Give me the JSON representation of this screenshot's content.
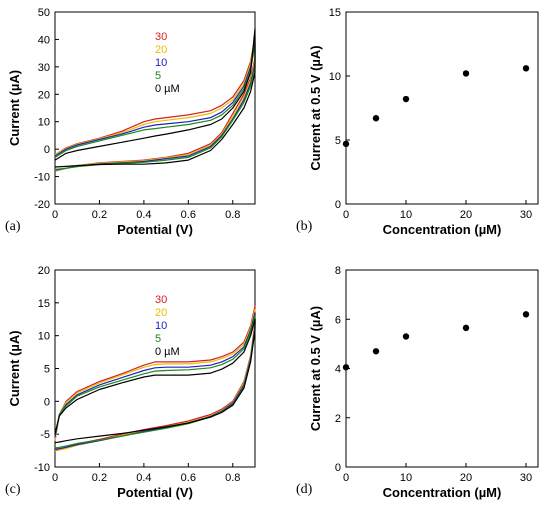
{
  "chart_data": [
    {
      "panel": "(a)",
      "type": "line",
      "xlabel": "Potential (V)",
      "ylabel": "Current (µA)",
      "xlim": [
        0,
        0.9
      ],
      "ylim": [
        -20,
        50
      ],
      "xticks": [
        0,
        0.2,
        0.4,
        0.6,
        0.8
      ],
      "yticks": [
        -20,
        -10,
        0,
        10,
        20,
        30,
        40,
        50
      ],
      "legend_placement": "top-center",
      "series": [
        {
          "name": "30",
          "color": "#d62020",
          "anodic": {
            "x": [
              0,
              0.05,
              0.1,
              0.2,
              0.3,
              0.4,
              0.45,
              0.5,
              0.6,
              0.7,
              0.75,
              0.8,
              0.85,
              0.88,
              0.9
            ],
            "y": [
              -2,
              0.5,
              2,
              4,
              6.5,
              10,
              11,
              11.5,
              12.5,
              14,
              16,
              19,
              25,
              32,
              41
            ]
          },
          "cathodic": {
            "x": [
              0.9,
              0.88,
              0.85,
              0.8,
              0.75,
              0.7,
              0.6,
              0.5,
              0.4,
              0.3,
              0.2,
              0.1,
              0.05,
              0
            ],
            "y": [
              33,
              26,
              20,
              13,
              6,
              2,
              -1.5,
              -3,
              -4,
              -4.5,
              -5,
              -6,
              -7,
              -8
            ]
          }
        },
        {
          "name": "20",
          "color": "#e6c000",
          "anodic": {
            "x": [
              0,
              0.05,
              0.1,
              0.2,
              0.3,
              0.4,
              0.45,
              0.5,
              0.6,
              0.7,
              0.75,
              0.8,
              0.85,
              0.88,
              0.9
            ],
            "y": [
              -2,
              0.3,
              1.8,
              3.8,
              6,
              9,
              10,
              10.5,
              11.5,
              13,
              15,
              18,
              24,
              31,
              40
            ]
          },
          "cathodic": {
            "x": [
              0.9,
              0.88,
              0.85,
              0.8,
              0.75,
              0.7,
              0.6,
              0.5,
              0.4,
              0.3,
              0.2,
              0.1,
              0.05,
              0
            ],
            "y": [
              32,
              25,
              19,
              12,
              5.5,
              1.5,
              -2,
              -3.2,
              -4.2,
              -4.7,
              -5.2,
              -6,
              -7,
              -7.8
            ]
          }
        },
        {
          "name": "10",
          "color": "#2020c0",
          "anodic": {
            "x": [
              0,
              0.05,
              0.1,
              0.2,
              0.3,
              0.4,
              0.45,
              0.5,
              0.6,
              0.7,
              0.75,
              0.8,
              0.85,
              0.88,
              0.9
            ],
            "y": [
              -2.5,
              0,
              1.5,
              3.5,
              5.5,
              8,
              8.8,
              9.2,
              10,
              11.5,
              13.5,
              17,
              23,
              30,
              39
            ]
          },
          "cathodic": {
            "x": [
              0.9,
              0.88,
              0.85,
              0.8,
              0.75,
              0.7,
              0.6,
              0.5,
              0.4,
              0.3,
              0.2,
              0.1,
              0.05,
              0
            ],
            "y": [
              31,
              24,
              18,
              11,
              5,
              1,
              -2.5,
              -3.5,
              -4.5,
              -5,
              -5.4,
              -6.2,
              -7,
              -7.6
            ]
          }
        },
        {
          "name": "5",
          "color": "#1a8a1a",
          "anodic": {
            "x": [
              0,
              0.05,
              0.1,
              0.2,
              0.3,
              0.4,
              0.45,
              0.5,
              0.6,
              0.7,
              0.75,
              0.8,
              0.85,
              0.88,
              0.9
            ],
            "y": [
              -3,
              -0.5,
              1,
              3,
              5,
              7,
              7.5,
              8,
              9,
              10.5,
              12.5,
              16,
              22,
              29,
              38
            ]
          },
          "cathodic": {
            "x": [
              0.9,
              0.88,
              0.85,
              0.8,
              0.75,
              0.7,
              0.6,
              0.5,
              0.4,
              0.3,
              0.2,
              0.1,
              0.05,
              0
            ],
            "y": [
              30,
              23,
              17,
              10.5,
              4.5,
              0.5,
              -3,
              -4,
              -4.8,
              -5.2,
              -5.6,
              -6.4,
              -7,
              -7.4
            ]
          }
        },
        {
          "name": "0 µM",
          "color": "#000000",
          "anodic": {
            "x": [
              0,
              0.05,
              0.1,
              0.2,
              0.3,
              0.4,
              0.45,
              0.5,
              0.6,
              0.7,
              0.75,
              0.8,
              0.85,
              0.88,
              0.9
            ],
            "y": [
              -4,
              -1.5,
              -0.5,
              1,
              2.5,
              4,
              4.8,
              5.5,
              7,
              9,
              11,
              15,
              21,
              28,
              44
            ]
          },
          "cathodic": {
            "x": [
              0.9,
              0.88,
              0.85,
              0.8,
              0.75,
              0.7,
              0.6,
              0.5,
              0.4,
              0.3,
              0.2,
              0.1,
              0.05,
              0
            ],
            "y": [
              28,
              21,
              15,
              9,
              3.5,
              -0.5,
              -4,
              -5,
              -5.5,
              -5.5,
              -5.6,
              -6,
              -6.3,
              -6.5
            ]
          }
        }
      ]
    },
    {
      "panel": "(b)",
      "type": "scatter",
      "xlabel": "Concentration (µM)",
      "ylabel": "Current at 0.5 V (µA)",
      "xlim": [
        0,
        32
      ],
      "ylim": [
        0,
        15
      ],
      "xticks": [
        0,
        10,
        20,
        30
      ],
      "yticks": [
        0,
        5,
        10,
        15
      ],
      "x": [
        0,
        5,
        10,
        20,
        30
      ],
      "y": [
        4.7,
        6.7,
        8.2,
        10.2,
        10.6
      ]
    },
    {
      "panel": "(c)",
      "type": "line",
      "xlabel": "Potential (V)",
      "ylabel": "Current (µA)",
      "xlim": [
        0,
        0.9
      ],
      "ylim": [
        -10,
        20
      ],
      "xticks": [
        0,
        0.2,
        0.4,
        0.6,
        0.8
      ],
      "yticks": [
        -10,
        -5,
        0,
        5,
        10,
        15,
        20
      ],
      "legend_placement": "top-center",
      "series": [
        {
          "name": "30",
          "color": "#d62020",
          "anodic": {
            "x": [
              0,
              0.02,
              0.05,
              0.1,
              0.2,
              0.3,
              0.4,
              0.45,
              0.5,
              0.6,
              0.7,
              0.75,
              0.8,
              0.85,
              0.88,
              0.9
            ],
            "y": [
              -6,
              -2,
              0,
              1.5,
              3,
              4.2,
              5.5,
              6,
              6,
              6,
              6.3,
              6.8,
              7.5,
              9,
              11.5,
              14.5
            ]
          },
          "cathodic": {
            "x": [
              0.9,
              0.88,
              0.85,
              0.8,
              0.75,
              0.7,
              0.6,
              0.5,
              0.4,
              0.3,
              0.2,
              0.1,
              0.05,
              0.02,
              0
            ],
            "y": [
              12,
              7,
              3,
              0,
              -1.2,
              -2,
              -3,
              -3.7,
              -4.3,
              -5,
              -5.8,
              -6.5,
              -7,
              -7.3,
              -7.5
            ]
          }
        },
        {
          "name": "20",
          "color": "#e6c000",
          "anodic": {
            "x": [
              0,
              0.02,
              0.05,
              0.1,
              0.2,
              0.3,
              0.4,
              0.45,
              0.5,
              0.6,
              0.7,
              0.75,
              0.8,
              0.85,
              0.88,
              0.9
            ],
            "y": [
              -6,
              -2,
              -0.2,
              1.3,
              2.8,
              4,
              5.2,
              5.6,
              5.7,
              5.7,
              6,
              6.5,
              7.2,
              8.7,
              11.2,
              14
            ]
          },
          "cathodic": {
            "x": [
              0.9,
              0.88,
              0.85,
              0.8,
              0.75,
              0.7,
              0.6,
              0.5,
              0.4,
              0.3,
              0.2,
              0.1,
              0.05,
              0.02,
              0
            ],
            "y": [
              11.8,
              6.8,
              2.8,
              -0.2,
              -1.4,
              -2.2,
              -3.2,
              -3.9,
              -4.5,
              -5.2,
              -6,
              -6.7,
              -7.2,
              -7.4,
              -7.6
            ]
          }
        },
        {
          "name": "10",
          "color": "#2020c0",
          "anodic": {
            "x": [
              0,
              0.02,
              0.05,
              0.1,
              0.2,
              0.3,
              0.4,
              0.45,
              0.5,
              0.6,
              0.7,
              0.75,
              0.8,
              0.85,
              0.88,
              0.9
            ],
            "y": [
              -5.5,
              -2,
              -0.5,
              1,
              2.5,
              3.6,
              4.7,
              5.1,
              5.2,
              5.2,
              5.5,
              6,
              6.8,
              8.3,
              10.8,
              13.5
            ]
          },
          "cathodic": {
            "x": [
              0.9,
              0.88,
              0.85,
              0.8,
              0.75,
              0.7,
              0.6,
              0.5,
              0.4,
              0.3,
              0.2,
              0.1,
              0.05,
              0.02,
              0
            ],
            "y": [
              11.5,
              6.5,
              2.5,
              -0.3,
              -1.5,
              -2.3,
              -3.3,
              -4,
              -4.6,
              -5.3,
              -6,
              -6.6,
              -7,
              -7.2,
              -7.3
            ]
          }
        },
        {
          "name": "5",
          "color": "#1a8a1a",
          "anodic": {
            "x": [
              0,
              0.02,
              0.05,
              0.1,
              0.2,
              0.3,
              0.4,
              0.45,
              0.5,
              0.6,
              0.7,
              0.75,
              0.8,
              0.85,
              0.88,
              0.9
            ],
            "y": [
              -5,
              -2,
              -0.7,
              0.8,
              2.2,
              3.2,
              4.2,
              4.6,
              4.7,
              4.8,
              5.1,
              5.6,
              6.4,
              8,
              10.5,
              13
            ]
          },
          "cathodic": {
            "x": [
              0.9,
              0.88,
              0.85,
              0.8,
              0.75,
              0.7,
              0.6,
              0.5,
              0.4,
              0.3,
              0.2,
              0.1,
              0.05,
              0.02,
              0
            ],
            "y": [
              11.2,
              6.2,
              2.2,
              -0.5,
              -1.6,
              -2.4,
              -3.4,
              -4.1,
              -4.7,
              -5.3,
              -5.9,
              -6.4,
              -6.8,
              -7,
              -7.1
            ]
          }
        },
        {
          "name": "0 µM",
          "color": "#000000",
          "anodic": {
            "x": [
              0,
              0.02,
              0.05,
              0.1,
              0.2,
              0.3,
              0.4,
              0.45,
              0.5,
              0.6,
              0.7,
              0.75,
              0.8,
              0.85,
              0.88,
              0.9
            ],
            "y": [
              -5,
              -2.2,
              -1,
              0.3,
              1.8,
              2.8,
              3.7,
              4,
              4,
              4,
              4.3,
              4.9,
              5.8,
              7.5,
              10,
              12.5
            ]
          },
          "cathodic": {
            "x": [
              0.9,
              0.88,
              0.85,
              0.8,
              0.75,
              0.7,
              0.6,
              0.5,
              0.4,
              0.3,
              0.2,
              0.1,
              0.05,
              0.02,
              0
            ],
            "y": [
              10.8,
              6,
              2,
              -0.6,
              -1.7,
              -2.4,
              -3.3,
              -3.9,
              -4.4,
              -4.9,
              -5.3,
              -5.7,
              -6,
              -6.2,
              -6.3
            ]
          }
        }
      ]
    },
    {
      "panel": "(d)",
      "type": "scatter",
      "xlabel": "Concentration (µM)",
      "ylabel": "Current at 0.5 V (µA)",
      "xlim": [
        0,
        32
      ],
      "ylim": [
        0,
        8
      ],
      "xticks": [
        0,
        10,
        20,
        30
      ],
      "yticks": [
        0,
        2,
        4,
        6,
        8
      ],
      "x": [
        0,
        5,
        10,
        20,
        30
      ],
      "y": [
        4.05,
        4.7,
        5.3,
        5.65,
        6.2
      ]
    }
  ]
}
